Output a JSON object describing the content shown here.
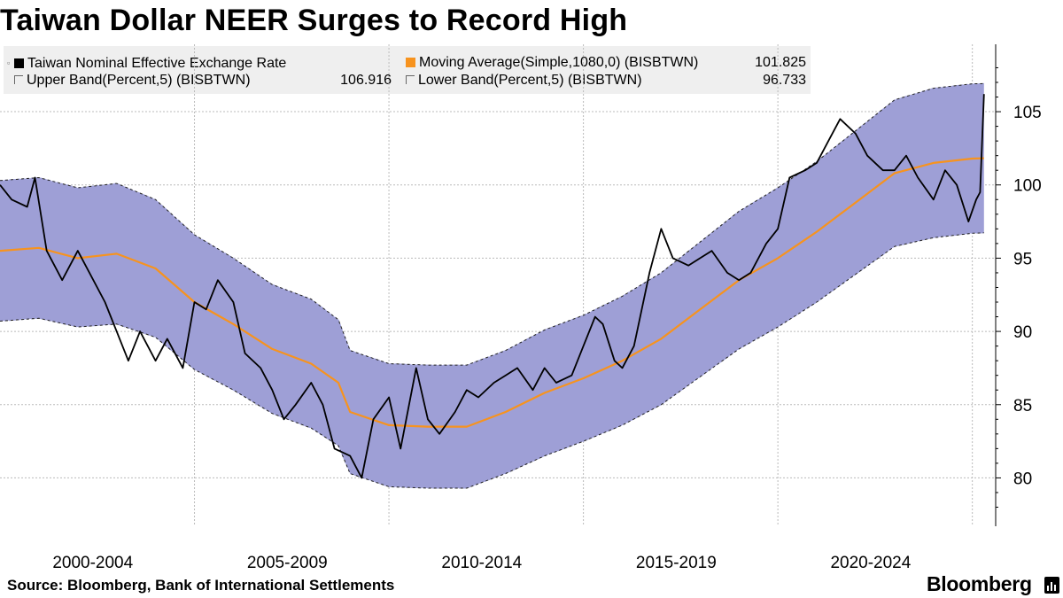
{
  "title": "Taiwan Dollar NEER Surges to Record High",
  "legend": {
    "items": [
      {
        "name": "Taiwan Nominal Effective Exchange Rate",
        "value": "",
        "swatch": "#000000"
      },
      {
        "name": "Moving Average(Simple,1080,0) (BISBTWN)",
        "value": "101.825",
        "swatch": "#f7931e"
      },
      {
        "name": "Upper Band(Percent,5) (BISBTWN)",
        "value": "106.916",
        "swatch": "#9e9fd6"
      },
      {
        "name": "Lower Band(Percent,5) (BISBTWN)",
        "value": "96.733",
        "swatch": "#9e9fd6"
      }
    ]
  },
  "source": "Source: Bloomberg, Bank of International Settlements",
  "brand": "Bloomberg",
  "colors": {
    "band": "#9e9fd6",
    "ma": "#f7931e",
    "line": "#000000",
    "grid": "#bbbbbb"
  },
  "chart_data": {
    "type": "line",
    "title": "Taiwan Dollar NEER Surges to Record High",
    "xlabel": "",
    "ylabel": "",
    "x_tick_labels": [
      "2000-2004",
      "2005-2009",
      "2010-2014",
      "2015-2019",
      "2020-2024"
    ],
    "y_ticks": [
      80,
      85,
      90,
      95,
      100,
      105
    ],
    "xlim": [
      2000.0,
      2025.6
    ],
    "ylim": [
      76.7,
      109.6
    ],
    "grid": true,
    "legend_position": "top-left",
    "series": [
      {
        "name": "Taiwan Nominal Effective Exchange Rate",
        "color": "#000000",
        "x": [
          2000.0,
          2000.3,
          2000.7,
          2000.9,
          2001.2,
          2001.6,
          2002.0,
          2002.3,
          2002.7,
          2003.0,
          2003.3,
          2003.6,
          2004.0,
          2004.3,
          2004.7,
          2005.0,
          2005.3,
          2005.6,
          2006.0,
          2006.3,
          2006.7,
          2007.0,
          2007.3,
          2007.6,
          2008.0,
          2008.3,
          2008.6,
          2009.0,
          2009.3,
          2009.6,
          2010.0,
          2010.3,
          2010.7,
          2011.0,
          2011.3,
          2011.7,
          2012.0,
          2012.3,
          2012.7,
          2013.0,
          2013.3,
          2013.7,
          2014.0,
          2014.3,
          2014.7,
          2015.0,
          2015.3,
          2015.5,
          2015.8,
          2016.0,
          2016.3,
          2016.7,
          2017.0,
          2017.3,
          2017.7,
          2018.0,
          2018.3,
          2018.7,
          2019.0,
          2019.3,
          2019.7,
          2020.0,
          2020.3,
          2020.7,
          2021.0,
          2021.3,
          2021.6,
          2022.0,
          2022.3,
          2022.7,
          2023.0,
          2023.3,
          2023.6,
          2024.0,
          2024.3,
          2024.6,
          2024.9,
          2025.1,
          2025.2,
          2025.3
        ],
        "y": [
          100.0,
          99.0,
          98.5,
          100.5,
          95.5,
          93.5,
          95.5,
          94.0,
          92.0,
          90.0,
          88.0,
          90.0,
          88.0,
          89.5,
          87.5,
          92.0,
          91.5,
          93.5,
          92.0,
          88.5,
          87.5,
          86.0,
          84.0,
          85.0,
          86.5,
          85.0,
          82.0,
          81.5,
          80.0,
          84.0,
          85.5,
          82.0,
          87.5,
          84.0,
          83.0,
          84.5,
          86.0,
          85.5,
          86.5,
          87.0,
          87.5,
          86.0,
          87.5,
          86.5,
          87.0,
          89.0,
          91.0,
          90.5,
          88.0,
          87.5,
          89.0,
          94.0,
          97.0,
          95.0,
          94.5,
          95.0,
          95.5,
          94.0,
          93.5,
          94.0,
          96.0,
          97.0,
          100.5,
          101.0,
          101.5,
          103.0,
          104.5,
          103.5,
          102.0,
          101.0,
          101.0,
          102.0,
          100.5,
          99.0,
          101.0,
          100.0,
          97.5,
          99.0,
          99.5,
          106.2
        ]
      },
      {
        "name": "Moving Average(Simple,1080,0) (BISBTWN)",
        "color": "#f7931e",
        "x": [
          2000.0,
          2001.0,
          2002.0,
          2003.0,
          2004.0,
          2005.0,
          2006.0,
          2007.0,
          2008.0,
          2008.7,
          2009.0,
          2010.0,
          2011.0,
          2012.0,
          2013.0,
          2014.0,
          2015.0,
          2016.0,
          2017.0,
          2018.0,
          2019.0,
          2020.0,
          2021.0,
          2022.0,
          2023.0,
          2024.0,
          2025.0,
          2025.3
        ],
        "y": [
          95.5,
          95.7,
          95.0,
          95.3,
          94.3,
          92.0,
          90.5,
          88.8,
          87.8,
          86.5,
          84.5,
          83.6,
          83.5,
          83.5,
          84.5,
          85.8,
          86.8,
          88.0,
          89.5,
          91.5,
          93.5,
          95.0,
          96.8,
          98.8,
          100.8,
          101.5,
          101.8,
          101.825
        ]
      },
      {
        "name": "Upper Band(Percent,5) (BISBTWN)",
        "color": "#9e9fd6",
        "x": [
          2000.0,
          2001.0,
          2002.0,
          2003.0,
          2004.0,
          2005.0,
          2006.0,
          2007.0,
          2008.0,
          2008.7,
          2009.0,
          2010.0,
          2011.0,
          2012.0,
          2013.0,
          2014.0,
          2015.0,
          2016.0,
          2017.0,
          2018.0,
          2019.0,
          2020.0,
          2021.0,
          2022.0,
          2023.0,
          2024.0,
          2025.0,
          2025.3
        ],
        "y": [
          100.3,
          100.5,
          99.8,
          100.1,
          99.0,
          96.6,
          95.0,
          93.2,
          92.2,
          90.8,
          88.7,
          87.8,
          87.7,
          87.7,
          88.7,
          90.1,
          91.1,
          92.4,
          94.0,
          96.1,
          98.2,
          99.8,
          101.6,
          103.7,
          105.8,
          106.6,
          106.9,
          106.916
        ]
      },
      {
        "name": "Lower Band(Percent,5) (BISBTWN)",
        "color": "#9e9fd6",
        "x": [
          2000.0,
          2001.0,
          2002.0,
          2003.0,
          2004.0,
          2005.0,
          2006.0,
          2007.0,
          2008.0,
          2008.7,
          2009.0,
          2010.0,
          2011.0,
          2012.0,
          2013.0,
          2014.0,
          2015.0,
          2016.0,
          2017.0,
          2018.0,
          2019.0,
          2020.0,
          2021.0,
          2022.0,
          2023.0,
          2024.0,
          2025.0,
          2025.3
        ],
        "y": [
          90.7,
          90.9,
          90.3,
          90.5,
          89.6,
          87.4,
          86.0,
          84.4,
          83.4,
          82.2,
          80.3,
          79.4,
          79.3,
          79.3,
          80.3,
          81.5,
          82.5,
          83.6,
          85.0,
          86.9,
          88.8,
          90.3,
          92.0,
          93.9,
          95.8,
          96.4,
          96.7,
          96.733
        ]
      }
    ]
  }
}
